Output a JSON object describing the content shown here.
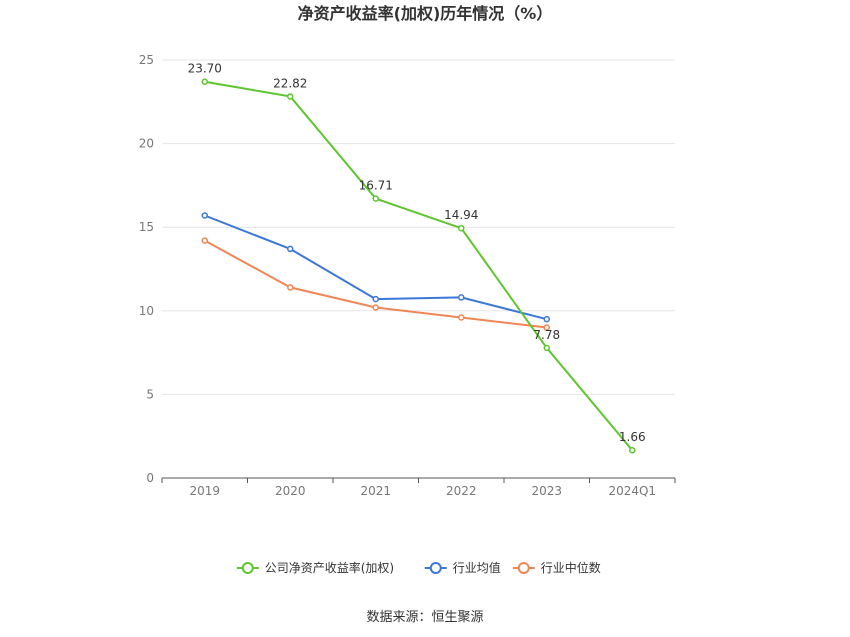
{
  "chart_data": {
    "type": "line",
    "title": "净资产收益率(加权)历年情况（%）",
    "categories": [
      "2019",
      "2020",
      "2021",
      "2022",
      "2023",
      "2024Q1"
    ],
    "ylim": [
      0,
      25
    ],
    "yticks": [
      0,
      5,
      10,
      15,
      20,
      25
    ],
    "grid": true,
    "legend_position": "bottom",
    "series": [
      {
        "name": "公司净资产收益率(加权)",
        "color": "#5ec52e",
        "values": [
          23.7,
          22.82,
          16.71,
          14.94,
          7.78,
          1.66
        ],
        "labels": [
          "23.70",
          "22.82",
          "16.71",
          "14.94",
          "7.78",
          "1.66"
        ]
      },
      {
        "name": "行业均值",
        "color": "#3b78d8",
        "values": [
          15.7,
          13.7,
          10.7,
          10.8,
          9.5,
          null
        ]
      },
      {
        "name": "行业中位数",
        "color": "#f08556",
        "values": [
          14.2,
          11.4,
          10.2,
          9.6,
          9.0,
          null
        ]
      }
    ]
  },
  "source": "数据来源：恒生聚源"
}
